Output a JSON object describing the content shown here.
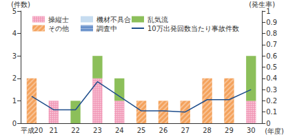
{
  "chart_data": {
    "type": "bar",
    "stacked": true,
    "grid": false,
    "x_label": "(年度)",
    "y_label": "(件数)",
    "y2_label": "(発生率)",
    "categories": [
      "平成20",
      "21",
      "22",
      "23",
      "24",
      "25",
      "26",
      "27",
      "28",
      "29",
      "30"
    ],
    "ylim": [
      0,
      5
    ],
    "yticks": [
      0,
      1,
      2,
      3,
      4,
      5
    ],
    "y2lim": [
      0,
      1
    ],
    "y2ticks": [
      0,
      0.1,
      0.2,
      0.3,
      0.4,
      0.5,
      0.6,
      0.7,
      0.8,
      0.9,
      1
    ],
    "series": [
      {
        "name": "操縦士",
        "type": "bar",
        "color": "#f29bb9",
        "values": [
          0,
          1,
          0,
          2,
          1,
          0,
          0,
          0,
          0,
          0,
          1
        ]
      },
      {
        "name": "機材不具合",
        "type": "bar",
        "color": "#c6dcf0",
        "values": [
          0,
          0,
          0,
          0,
          0,
          0,
          0,
          0,
          0,
          0,
          0
        ]
      },
      {
        "name": "調査中",
        "type": "bar",
        "color": "#5b87c6",
        "values": [
          0,
          0,
          0,
          0,
          0,
          0,
          0,
          0,
          0,
          0,
          0
        ]
      },
      {
        "name": "乱気流",
        "type": "bar",
        "color": "#8cbf5a",
        "values": [
          0,
          0,
          1,
          1,
          1,
          0,
          0,
          0,
          0,
          0,
          2
        ]
      },
      {
        "name": "その他",
        "type": "bar",
        "color": "#f4a25c",
        "values": [
          2,
          0,
          0,
          0,
          0,
          1,
          1,
          1,
          2,
          2,
          0
        ]
      },
      {
        "name": "10万出発回数当たり事故件数",
        "type": "line",
        "axis": "y2",
        "color": "#1f4e8c",
        "marker": "none",
        "line_style": "solid",
        "values": [
          0.24,
          0.12,
          0.12,
          0.37,
          0.24,
          0.11,
          0.11,
          0.1,
          0.21,
          0.21,
          0.3
        ]
      }
    ]
  }
}
